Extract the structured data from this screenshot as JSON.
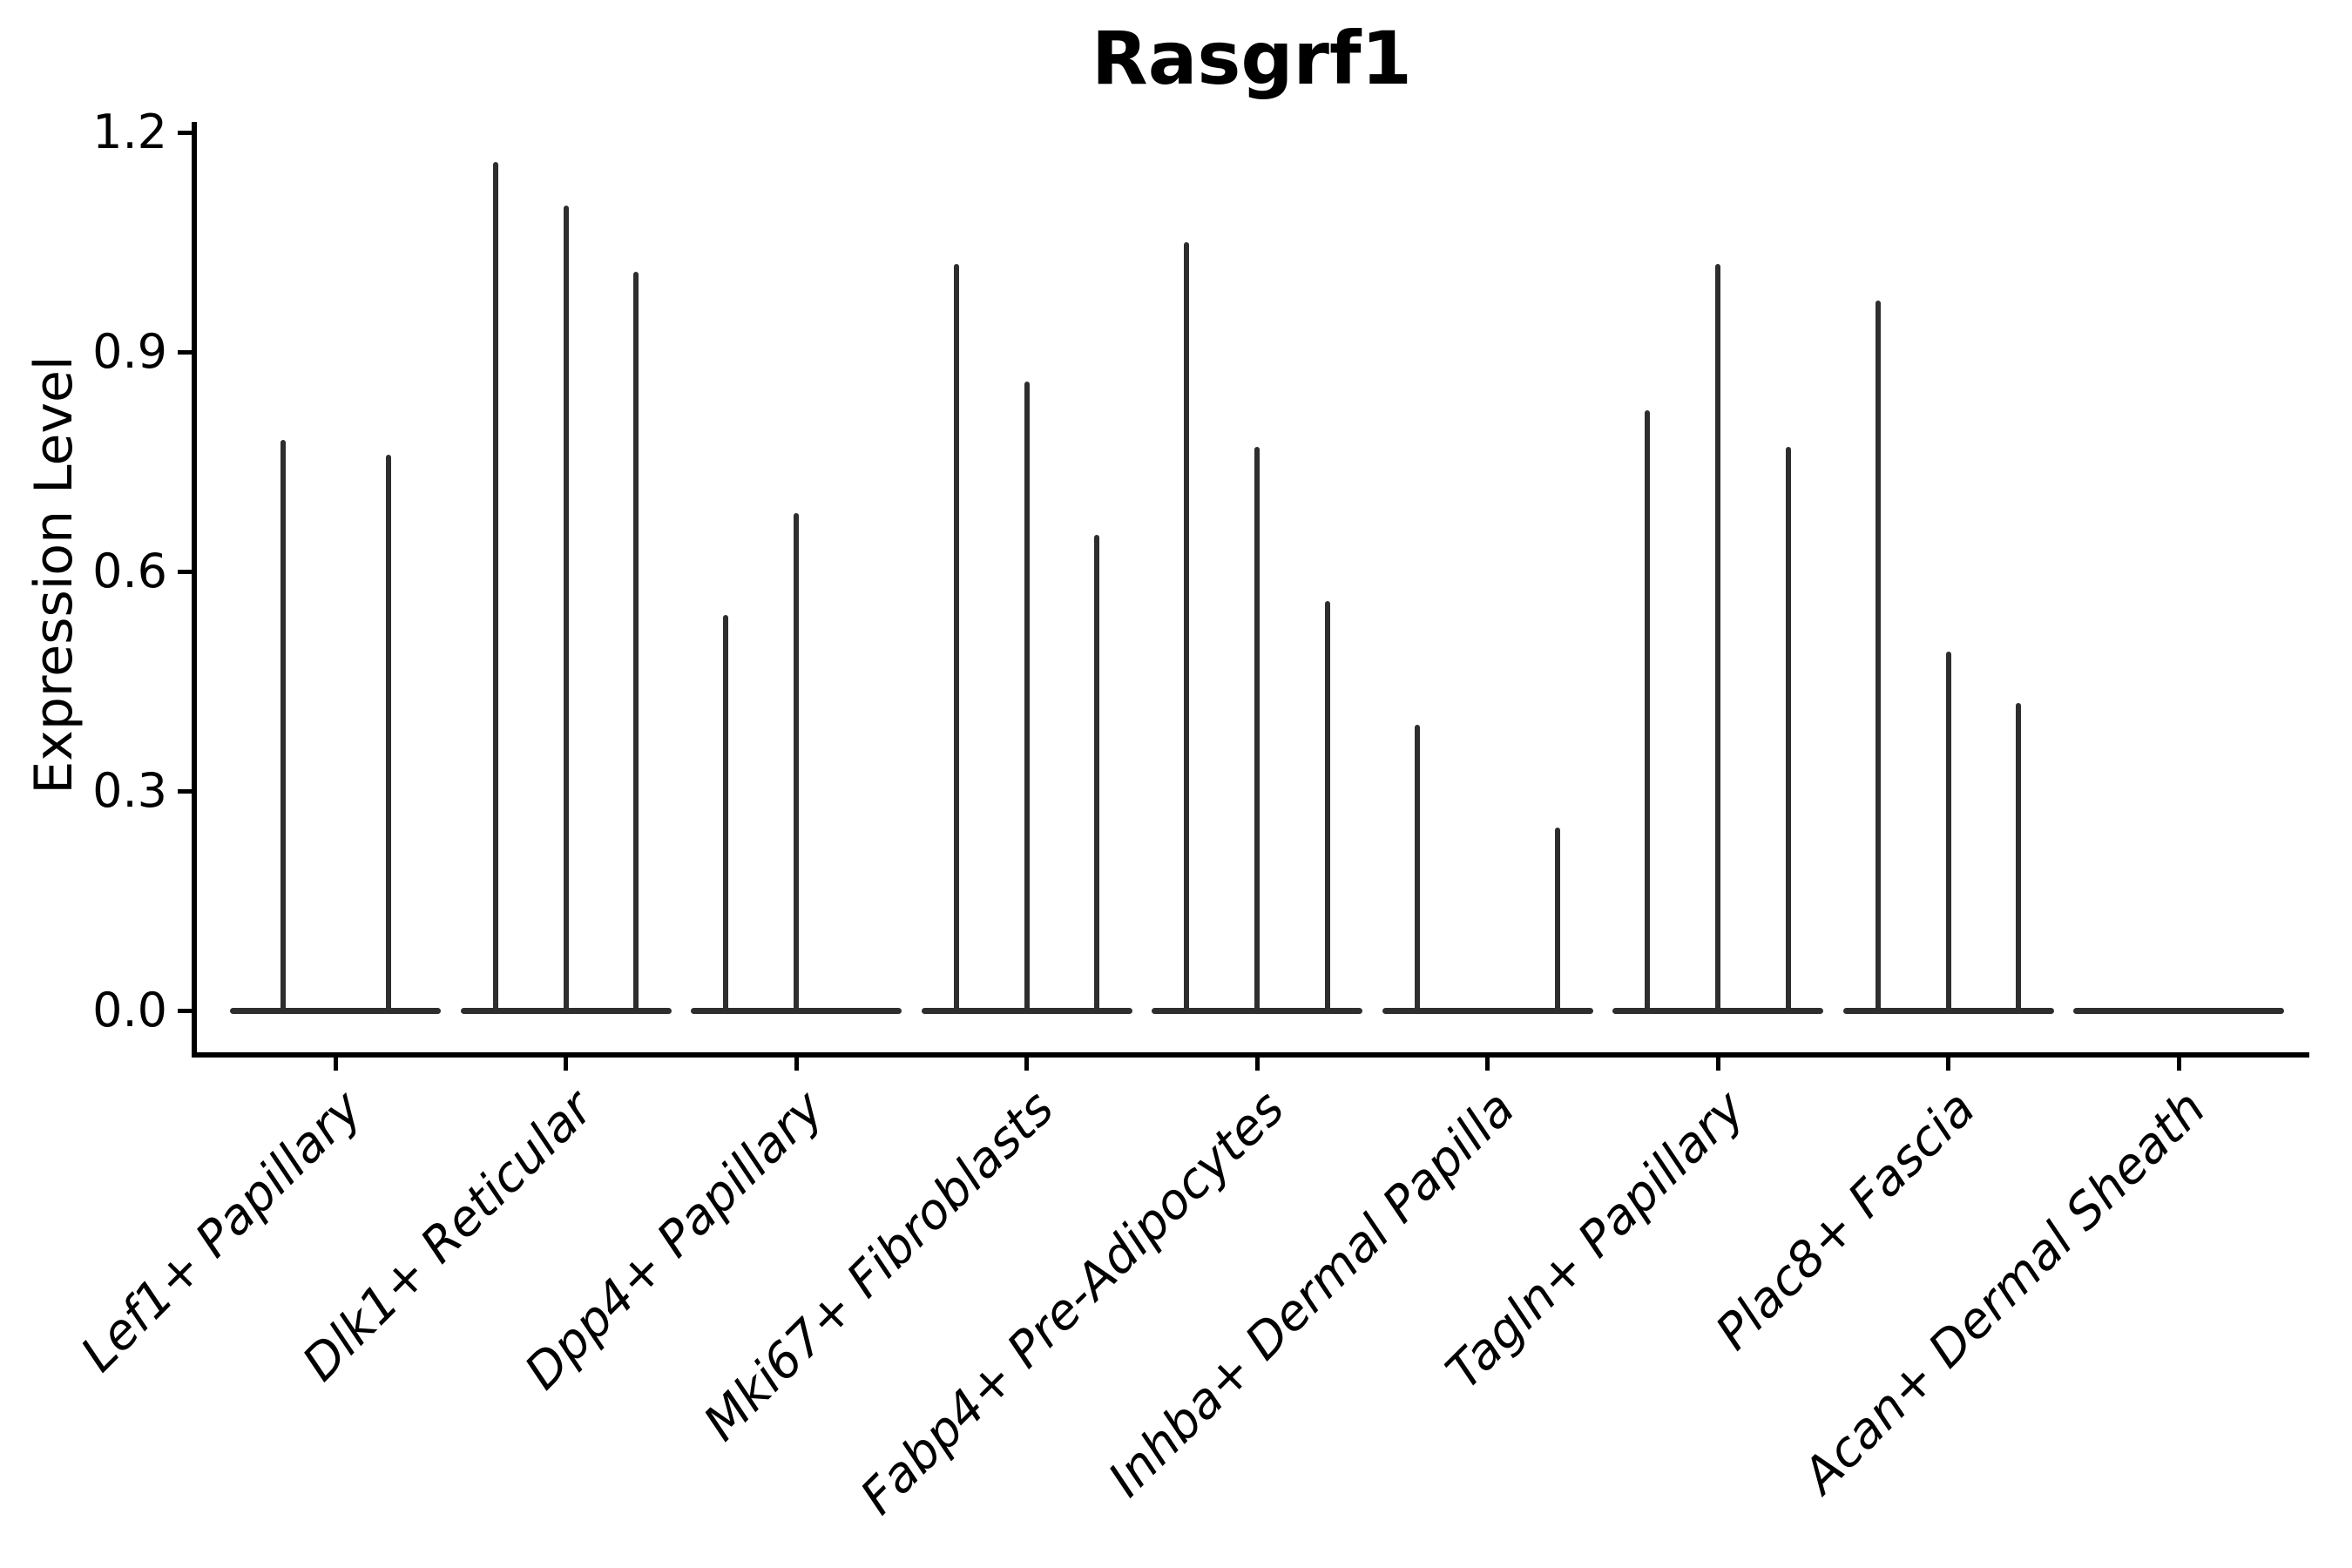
{
  "chart_data": {
    "type": "violin",
    "title": "Rasgrf1",
    "ylabel": "Expression Level",
    "xlabel": "",
    "yticks": [
      0.0,
      0.3,
      0.6,
      0.9,
      1.2
    ],
    "ytick_labels": [
      "0.0",
      "0.3",
      "0.6",
      "0.9",
      "1.2"
    ],
    "ylim": [
      -0.06,
      1.21
    ],
    "grid": false,
    "legend": "none",
    "ink_color": "#2e2e2e",
    "axis_color": "#000000",
    "categories": [
      "Lef1+ Papillary",
      "Dlk1+ Reticular",
      "Dpp4+ Papillary",
      "Mki67+ Fibroblasts",
      "Fabp4+ Pre-Adipocytes",
      "Inhba+ Dermal Papilla",
      "Tagln+ Papillary",
      "Plac8+ Fascia",
      "Acan+ Dermal Sheath"
    ],
    "groups": [
      {
        "category": "Lef1+ Papillary",
        "slots": 2,
        "violins": [
          {
            "slot": 0,
            "peak": 0.78
          },
          {
            "slot": 1,
            "peak": 0.76
          }
        ]
      },
      {
        "category": "Dlk1+ Reticular",
        "slots": 3,
        "violins": [
          {
            "slot": 0,
            "peak": 1.16
          },
          {
            "slot": 1,
            "peak": 1.1
          },
          {
            "slot": 2,
            "peak": 1.01
          }
        ]
      },
      {
        "category": "Dpp4+ Papillary",
        "slots": 3,
        "violins": [
          {
            "slot": 0,
            "peak": 0.54
          },
          {
            "slot": 1,
            "peak": 0.68
          }
        ]
      },
      {
        "category": "Mki67+ Fibroblasts",
        "slots": 3,
        "violins": [
          {
            "slot": 0,
            "peak": 1.02
          },
          {
            "slot": 1,
            "peak": 0.86
          },
          {
            "slot": 2,
            "peak": 0.65
          }
        ]
      },
      {
        "category": "Fabp4+ Pre-Adipocytes",
        "slots": 3,
        "violins": [
          {
            "slot": 0,
            "peak": 1.05
          },
          {
            "slot": 1,
            "peak": 0.77
          },
          {
            "slot": 2,
            "peak": 0.56
          }
        ]
      },
      {
        "category": "Inhba+ Dermal Papilla",
        "slots": 3,
        "violins": [
          {
            "slot": 0,
            "peak": 0.39
          },
          {
            "slot": 2,
            "peak": 0.25
          }
        ]
      },
      {
        "category": "Tagln+ Papillary",
        "slots": 3,
        "violins": [
          {
            "slot": 0,
            "peak": 0.82
          },
          {
            "slot": 1,
            "peak": 1.02
          },
          {
            "slot": 2,
            "peak": 0.77
          }
        ]
      },
      {
        "category": "Plac8+ Fascia",
        "slots": 3,
        "violins": [
          {
            "slot": 0,
            "peak": 0.97
          },
          {
            "slot": 1,
            "peak": 0.49
          },
          {
            "slot": 2,
            "peak": 0.42
          }
        ]
      },
      {
        "category": "Acan+ Dermal Sheath",
        "slots": 3,
        "violins": []
      }
    ]
  }
}
